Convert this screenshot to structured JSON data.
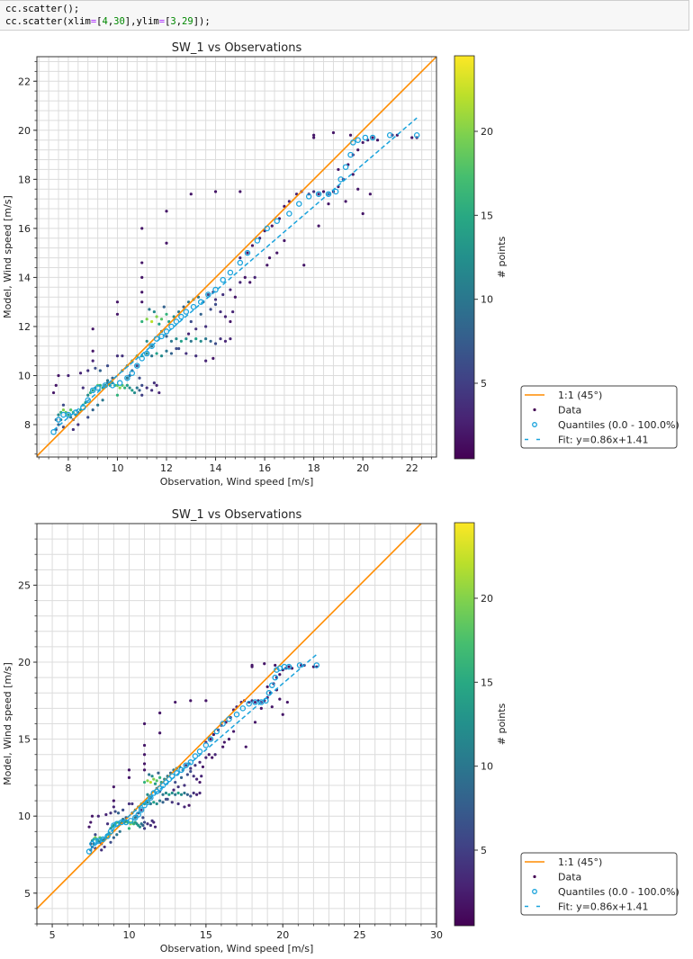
{
  "code_cell": {
    "line1": "cc.scatter();",
    "line2_prefix": "cc.scatter(xlim",
    "line2_eq1": "=",
    "line2_open1": "[",
    "line2_v1": "4",
    "line2_comma1": ",",
    "line2_v2": "30",
    "line2_mid": "],ylim",
    "line2_eq2": "=",
    "line2_open2": "[",
    "line2_v3": "3",
    "line2_comma2": ",",
    "line2_v4": "29",
    "line2_suffix": "]);"
  },
  "colors": {
    "one_to_one": "#ff8c00",
    "quantiles": "#1aa3dc",
    "fit": "#1aa3dc",
    "grid": "#dcdcdc",
    "data_default": "#440154"
  },
  "chart_data": [
    {
      "type": "scatter",
      "title": "SW_1 vs Observations",
      "xlabel": "Observation, Wind speed [m/s]",
      "ylabel": "Model, Wind speed [m/s]",
      "xlim": [
        6.72,
        23.0
      ],
      "ylim": [
        6.68,
        23.0
      ],
      "xticks": [
        8,
        10,
        12,
        14,
        16,
        18,
        20,
        22
      ],
      "yticks": [
        8,
        10,
        12,
        14,
        16,
        18,
        20,
        22
      ],
      "minor_step": 0.4,
      "grid": true,
      "colorbar": {
        "label": "# points",
        "range": [
          0.5,
          24.5
        ],
        "ticks": [
          5,
          10,
          15,
          20
        ],
        "colormap": "viridis"
      },
      "legend": {
        "placement": "outside-right",
        "entries": [
          "1:1 (45°)",
          "Data",
          "Quantiles (0.0 - 100.0%)",
          "Fit: y=0.86x+1.41"
        ]
      },
      "fit": {
        "slope": 0.86,
        "intercept": 1.41,
        "x_range": [
          7.4,
          22.2
        ]
      }
    },
    {
      "type": "scatter",
      "title": "SW_1 vs Observations",
      "xlabel": "Observation, Wind speed [m/s]",
      "ylabel": "Model, Wind speed [m/s]",
      "xlim": [
        4,
        30
      ],
      "ylim": [
        3,
        29
      ],
      "xticks": [
        5,
        10,
        15,
        20,
        25,
        30
      ],
      "yticks": [
        5,
        10,
        15,
        20,
        25
      ],
      "minor_step": 1,
      "grid": true,
      "colorbar": {
        "label": "# points",
        "range": [
          0.5,
          24.5
        ],
        "ticks": [
          5,
          10,
          15,
          20
        ],
        "colormap": "viridis"
      },
      "legend": {
        "placement": "outside-right",
        "entries": [
          "1:1 (45°)",
          "Data",
          "Quantiles (0.0 - 100.0%)",
          "Fit: y=0.86x+1.41"
        ]
      },
      "fit": {
        "slope": 0.86,
        "intercept": 1.41,
        "x_range": [
          7.4,
          22.2
        ]
      }
    }
  ],
  "scatter_points": [
    [
      7.5,
      8.2,
      8
    ],
    [
      7.6,
      8.4,
      12
    ],
    [
      7.7,
      8.5,
      16
    ],
    [
      7.8,
      8.6,
      20
    ],
    [
      7.9,
      8.5,
      18
    ],
    [
      8.0,
      8.4,
      14
    ],
    [
      8.1,
      8.6,
      18
    ],
    [
      8.2,
      8.5,
      16
    ],
    [
      8.3,
      8.4,
      12
    ],
    [
      8.4,
      8.5,
      10
    ],
    [
      7.6,
      8.0,
      8
    ],
    [
      7.8,
      7.9,
      6
    ],
    [
      8.1,
      8.3,
      10
    ],
    [
      8.5,
      8.6,
      14
    ],
    [
      8.6,
      8.8,
      16
    ],
    [
      8.7,
      8.9,
      14
    ],
    [
      8.8,
      9.2,
      12
    ],
    [
      8.9,
      9.3,
      16
    ],
    [
      9.0,
      9.4,
      14
    ],
    [
      9.1,
      9.5,
      12
    ],
    [
      9.2,
      9.6,
      18
    ],
    [
      9.3,
      9.6,
      16
    ],
    [
      9.4,
      9.5,
      14
    ],
    [
      9.5,
      9.6,
      12
    ],
    [
      9.6,
      9.7,
      10
    ],
    [
      9.7,
      9.6,
      14
    ],
    [
      9.8,
      9.7,
      12
    ],
    [
      9.9,
      9.6,
      16
    ],
    [
      10.0,
      9.6,
      18
    ],
    [
      10.1,
      9.5,
      20
    ],
    [
      10.2,
      9.6,
      18
    ],
    [
      10.3,
      9.5,
      16
    ],
    [
      10.4,
      9.6,
      14
    ],
    [
      10.5,
      9.5,
      12
    ],
    [
      10.6,
      9.4,
      14
    ],
    [
      10.7,
      9.3,
      12
    ],
    [
      10.8,
      9.5,
      10
    ],
    [
      10.9,
      9.4,
      8
    ],
    [
      11.0,
      9.6,
      6
    ],
    [
      11.2,
      9.5,
      4
    ],
    [
      11.4,
      9.4,
      4
    ],
    [
      11.6,
      9.6,
      3
    ],
    [
      11.7,
      9.3,
      3
    ],
    [
      11.5,
      9.7,
      4
    ],
    [
      11.0,
      9.2,
      5
    ],
    [
      10.9,
      9.9,
      6
    ],
    [
      10.5,
      10.0,
      8
    ],
    [
      10.2,
      10.2,
      10
    ],
    [
      10.4,
      10.4,
      12
    ],
    [
      10.6,
      10.6,
      14
    ],
    [
      10.8,
      10.8,
      16
    ],
    [
      11.0,
      10.8,
      14
    ],
    [
      11.2,
      10.9,
      12
    ],
    [
      11.4,
      10.8,
      10
    ],
    [
      11.6,
      10.9,
      14
    ],
    [
      11.8,
      10.8,
      12
    ],
    [
      12.0,
      11.0,
      10
    ],
    [
      12.2,
      10.9,
      8
    ],
    [
      12.4,
      11.1,
      6
    ],
    [
      10.2,
      10.8,
      4
    ],
    [
      10.0,
      10.8,
      4
    ],
    [
      9.6,
      10.4,
      6
    ],
    [
      9.3,
      10.2,
      8
    ],
    [
      9.1,
      10.3,
      6
    ],
    [
      8.8,
      10.2,
      4
    ],
    [
      8.5,
      10.1,
      3
    ],
    [
      8.0,
      10.0,
      3
    ],
    [
      7.6,
      10.0,
      2
    ],
    [
      7.5,
      9.6,
      2
    ],
    [
      7.4,
      9.3,
      2
    ],
    [
      9.2,
      8.8,
      10
    ],
    [
      9.0,
      8.6,
      8
    ],
    [
      8.8,
      8.3,
      6
    ],
    [
      9.4,
      9.0,
      10
    ],
    [
      8.2,
      7.8,
      4
    ],
    [
      7.8,
      8.8,
      6
    ],
    [
      8.6,
      9.5,
      4
    ],
    [
      9.0,
      10.6,
      3
    ],
    [
      9.0,
      11.0,
      2
    ],
    [
      9.0,
      11.9,
      2
    ],
    [
      11.0,
      12.2,
      16
    ],
    [
      11.2,
      12.3,
      20
    ],
    [
      11.4,
      12.2,
      22
    ],
    [
      11.6,
      12.4,
      20
    ],
    [
      11.8,
      12.3,
      18
    ],
    [
      12.0,
      12.5,
      16
    ],
    [
      11.7,
      12.1,
      14
    ],
    [
      11.5,
      12.6,
      12
    ],
    [
      11.3,
      12.7,
      10
    ],
    [
      11.9,
      12.8,
      8
    ],
    [
      12.1,
      12.2,
      14
    ],
    [
      12.3,
      12.4,
      12
    ],
    [
      12.5,
      12.6,
      10
    ],
    [
      12.7,
      12.8,
      8
    ],
    [
      12.9,
      13.0,
      10
    ],
    [
      13.1,
      13.1,
      12
    ],
    [
      13.3,
      13.2,
      10
    ],
    [
      13.5,
      13.0,
      8
    ],
    [
      13.7,
      13.3,
      6
    ],
    [
      13.9,
      13.4,
      5
    ],
    [
      12.2,
      11.4,
      10
    ],
    [
      12.4,
      11.5,
      12
    ],
    [
      12.6,
      11.4,
      14
    ],
    [
      12.8,
      11.5,
      12
    ],
    [
      13.0,
      11.4,
      10
    ],
    [
      13.2,
      11.5,
      14
    ],
    [
      13.4,
      11.4,
      12
    ],
    [
      13.6,
      11.5,
      10
    ],
    [
      13.8,
      11.4,
      8
    ],
    [
      14.0,
      11.3,
      6
    ],
    [
      14.2,
      11.5,
      4
    ],
    [
      14.4,
      11.4,
      3
    ],
    [
      14.6,
      11.5,
      3
    ],
    [
      12.5,
      11.1,
      6
    ],
    [
      12.8,
      10.9,
      4
    ],
    [
      13.2,
      10.8,
      4
    ],
    [
      13.6,
      10.6,
      3
    ],
    [
      13.9,
      10.7,
      2
    ],
    [
      12.0,
      11.6,
      8
    ],
    [
      11.8,
      11.8,
      10
    ],
    [
      11.0,
      13.0,
      2
    ],
    [
      11.0,
      13.4,
      2
    ],
    [
      11.0,
      14.0,
      2
    ],
    [
      11.0,
      14.6,
      2
    ],
    [
      11.0,
      16.0,
      2
    ],
    [
      10.0,
      12.5,
      2
    ],
    [
      10.0,
      13.0,
      2
    ],
    [
      12.0,
      15.4,
      2
    ],
    [
      12.0,
      16.7,
      2
    ],
    [
      13.0,
      17.4,
      2
    ],
    [
      14.0,
      17.5,
      2
    ],
    [
      15.0,
      17.5,
      2
    ],
    [
      14.2,
      12.6,
      4
    ],
    [
      14.4,
      12.4,
      3
    ],
    [
      14.6,
      12.2,
      2
    ],
    [
      14.0,
      12.9,
      6
    ],
    [
      14.3,
      13.3,
      4
    ],
    [
      14.6,
      13.5,
      3
    ],
    [
      15.0,
      13.8,
      3
    ],
    [
      15.2,
      14.0,
      2
    ],
    [
      15.0,
      14.8,
      3
    ],
    [
      15.3,
      15.0,
      2
    ],
    [
      15.5,
      15.3,
      2
    ],
    [
      15.8,
      15.6,
      3
    ],
    [
      16.0,
      15.9,
      2
    ],
    [
      16.3,
      16.1,
      2
    ],
    [
      16.6,
      16.4,
      2
    ],
    [
      16.8,
      16.9,
      2
    ],
    [
      17.0,
      17.1,
      3
    ],
    [
      17.3,
      17.4,
      3
    ],
    [
      17.5,
      17.5,
      2
    ],
    [
      17.8,
      17.4,
      3
    ],
    [
      18.0,
      17.5,
      4
    ],
    [
      18.2,
      17.4,
      3
    ],
    [
      18.4,
      17.5,
      2
    ],
    [
      18.6,
      17.4,
      3
    ],
    [
      18.8,
      17.5,
      2
    ],
    [
      19.0,
      17.7,
      2
    ],
    [
      19.2,
      18.0,
      2
    ],
    [
      19.4,
      18.6,
      2
    ],
    [
      19.6,
      19.0,
      2
    ],
    [
      19.8,
      19.2,
      2
    ],
    [
      20.0,
      19.5,
      2
    ],
    [
      20.2,
      19.6,
      3
    ],
    [
      20.4,
      19.7,
      2
    ],
    [
      20.6,
      19.6,
      2
    ],
    [
      19.5,
      19.8,
      2
    ],
    [
      18.8,
      19.9,
      2
    ],
    [
      18.0,
      19.8,
      2
    ],
    [
      18.0,
      19.7,
      2
    ],
    [
      21.2,
      19.8,
      2
    ],
    [
      21.4,
      19.8,
      2
    ],
    [
      22.0,
      19.7,
      2
    ],
    [
      22.2,
      19.7,
      2
    ],
    [
      19.0,
      18.4,
      2
    ],
    [
      19.3,
      17.1,
      2
    ],
    [
      20.0,
      16.6,
      2
    ],
    [
      20.3,
      17.4,
      2
    ],
    [
      18.2,
      16.1,
      2
    ],
    [
      17.6,
      14.5,
      2
    ],
    [
      16.1,
      14.5,
      2
    ],
    [
      14.8,
      13.2,
      2
    ],
    [
      15.6,
      14.0,
      3
    ],
    [
      16.2,
      14.8,
      2
    ],
    [
      16.8,
      15.5,
      2
    ],
    [
      15.4,
      13.8,
      2
    ],
    [
      18.6,
      17.0,
      2
    ],
    [
      19.6,
      18.2,
      2
    ],
    [
      19.8,
      17.6,
      2
    ],
    [
      16.5,
      15.0,
      2
    ],
    [
      14.7,
      12.6,
      3
    ],
    [
      13.2,
      11.9,
      4
    ],
    [
      12.9,
      11.7,
      3
    ],
    [
      13.6,
      12.0,
      4
    ],
    [
      13.0,
      12.2,
      6
    ],
    [
      13.4,
      12.5,
      8
    ],
    [
      13.8,
      12.7,
      6
    ],
    [
      14.0,
      13.1,
      4
    ],
    [
      11.2,
      11.4,
      12
    ],
    [
      11.4,
      11.2,
      10
    ],
    [
      10.6,
      10.2,
      8
    ],
    [
      10.8,
      10.4,
      6
    ],
    [
      10.4,
      9.9,
      10
    ],
    [
      9.8,
      9.9,
      8
    ],
    [
      9.6,
      9.8,
      10
    ],
    [
      8.4,
      8.0,
      4
    ],
    [
      8.2,
      8.2,
      6
    ],
    [
      7.5,
      7.8,
      6
    ],
    [
      7.7,
      8.2,
      10
    ],
    [
      10.0,
      9.2,
      16
    ]
  ],
  "quantiles": [
    [
      7.4,
      7.7
    ],
    [
      7.6,
      8.2
    ],
    [
      7.8,
      8.4
    ],
    [
      8.0,
      8.4
    ],
    [
      8.3,
      8.5
    ],
    [
      8.6,
      8.7
    ],
    [
      8.8,
      9.0
    ],
    [
      9.0,
      9.4
    ],
    [
      9.2,
      9.5
    ],
    [
      9.5,
      9.6
    ],
    [
      9.8,
      9.6
    ],
    [
      10.1,
      9.7
    ],
    [
      10.4,
      9.9
    ],
    [
      10.6,
      10.1
    ],
    [
      10.8,
      10.4
    ],
    [
      11.0,
      10.7
    ],
    [
      11.2,
      10.9
    ],
    [
      11.4,
      11.2
    ],
    [
      11.6,
      11.5
    ],
    [
      11.8,
      11.6
    ],
    [
      12.0,
      11.8
    ],
    [
      12.2,
      12.0
    ],
    [
      12.4,
      12.2
    ],
    [
      12.6,
      12.4
    ],
    [
      12.8,
      12.6
    ],
    [
      13.1,
      12.8
    ],
    [
      13.4,
      13.0
    ],
    [
      13.7,
      13.3
    ],
    [
      14.0,
      13.5
    ],
    [
      14.3,
      13.9
    ],
    [
      14.6,
      14.2
    ],
    [
      15.0,
      14.6
    ],
    [
      15.3,
      15.0
    ],
    [
      15.7,
      15.5
    ],
    [
      16.1,
      16.0
    ],
    [
      16.5,
      16.3
    ],
    [
      17.0,
      16.6
    ],
    [
      17.4,
      17.0
    ],
    [
      17.8,
      17.3
    ],
    [
      18.2,
      17.4
    ],
    [
      18.6,
      17.4
    ],
    [
      18.9,
      17.5
    ],
    [
      19.1,
      18.0
    ],
    [
      19.3,
      18.5
    ],
    [
      19.5,
      19.0
    ],
    [
      19.6,
      19.5
    ],
    [
      19.8,
      19.6
    ],
    [
      20.1,
      19.7
    ],
    [
      20.4,
      19.7
    ],
    [
      21.1,
      19.8
    ],
    [
      22.2,
      19.8
    ]
  ]
}
